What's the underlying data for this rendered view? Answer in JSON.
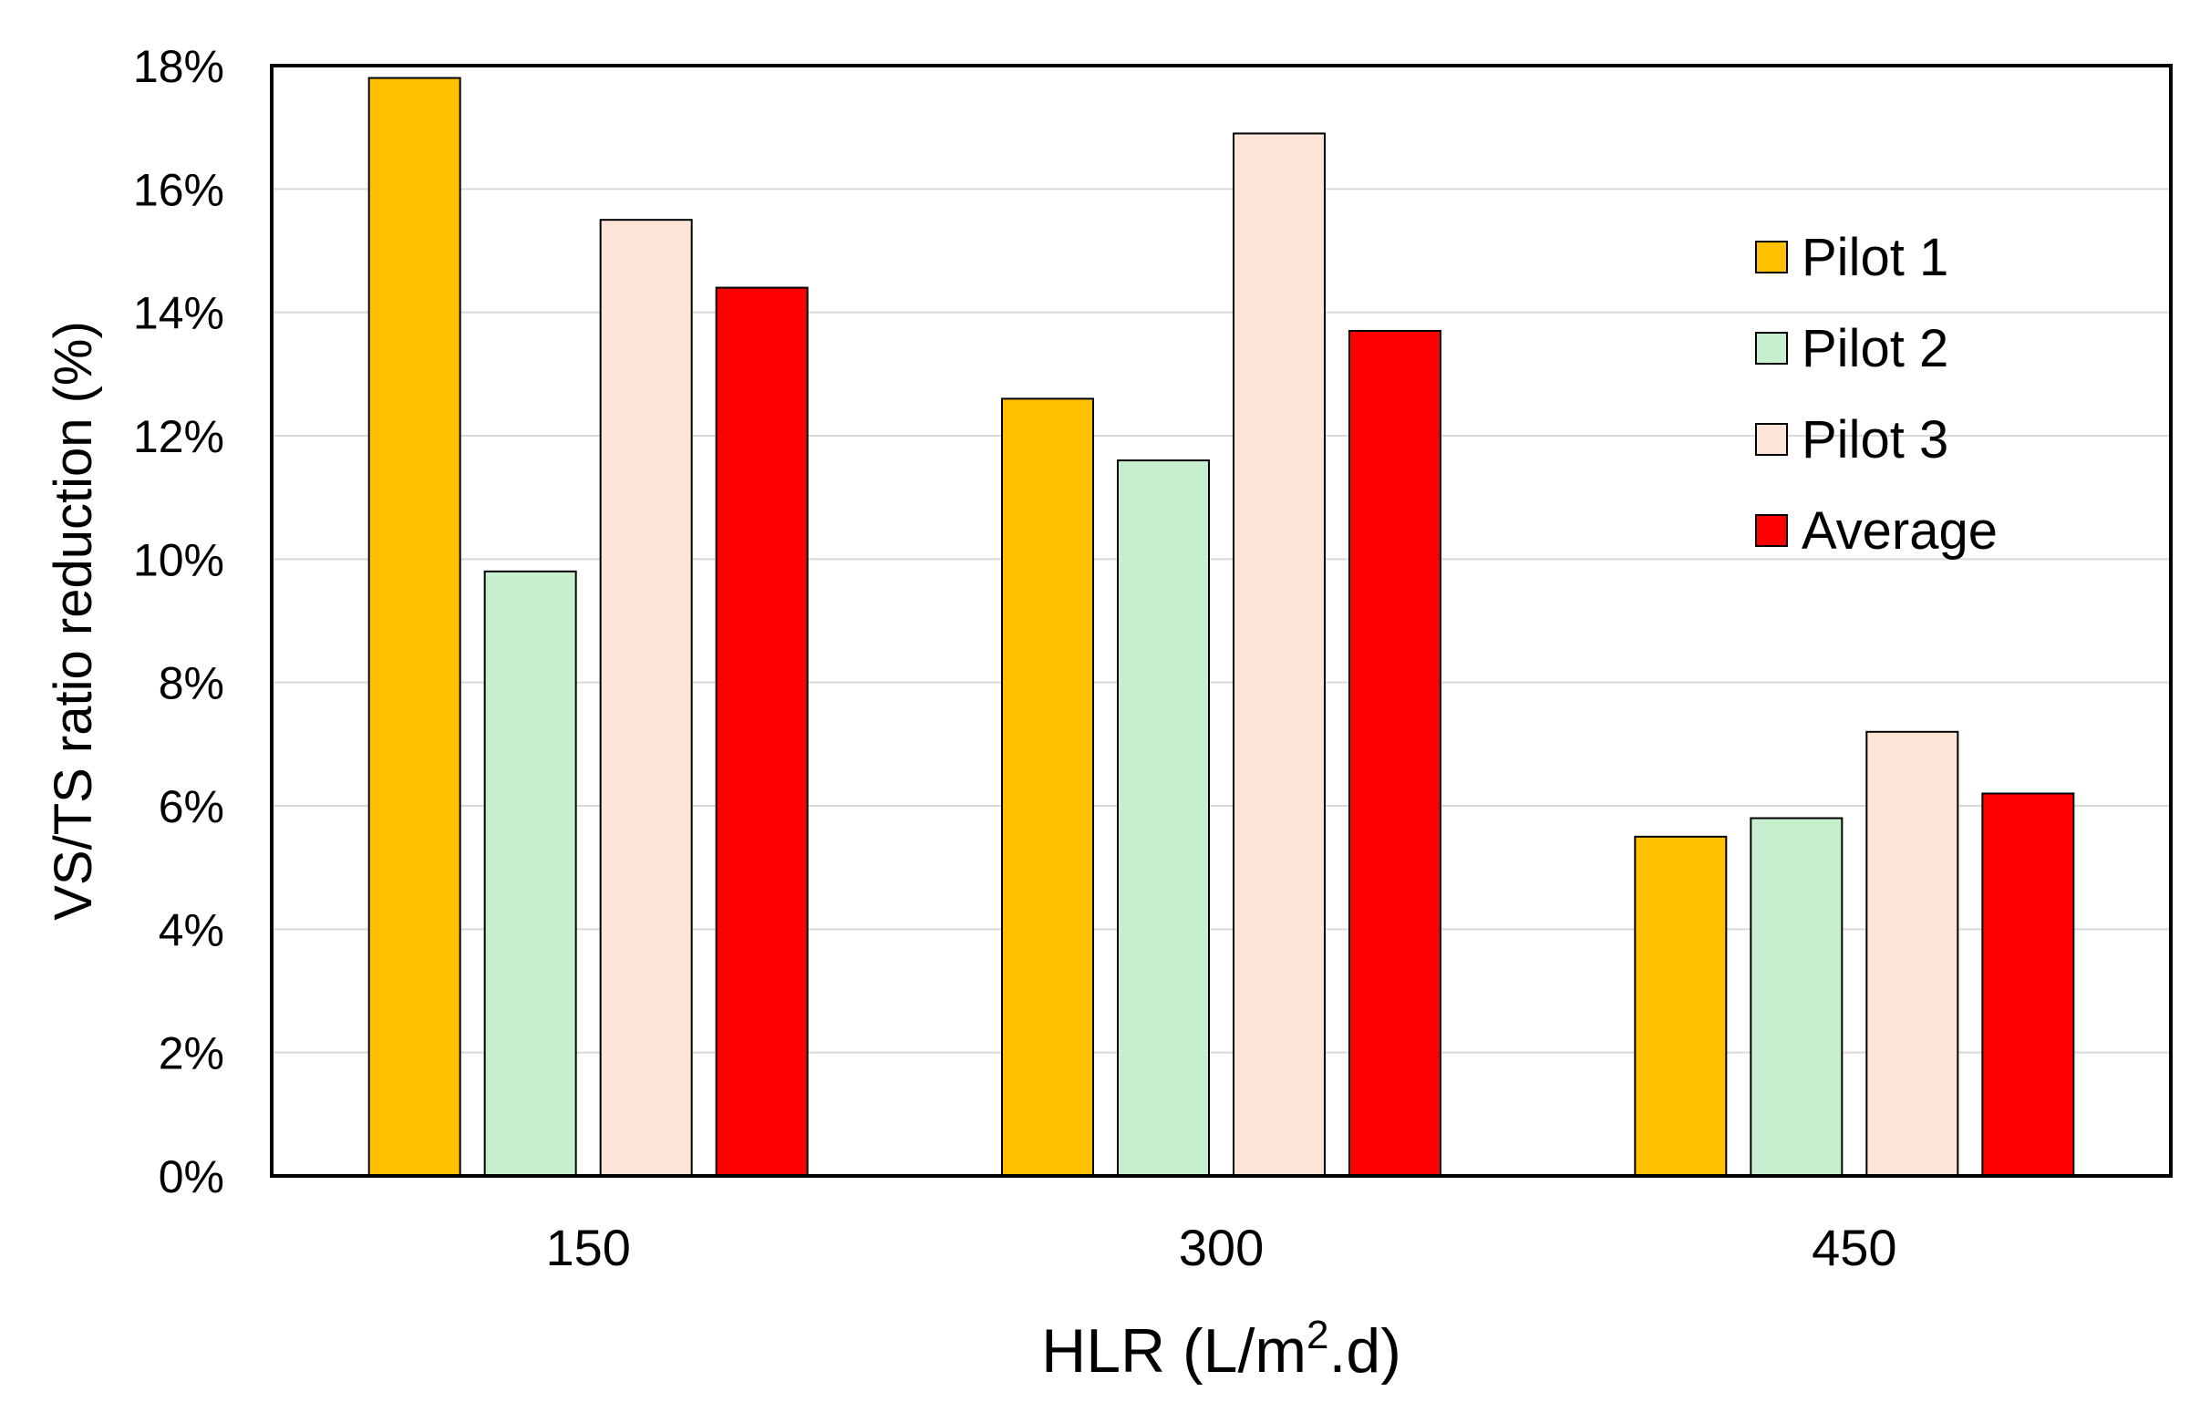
{
  "chart_data": {
    "type": "bar",
    "categories": [
      "150",
      "300",
      "450"
    ],
    "series": [
      {
        "name": "Pilot 1",
        "color": "#FFC000",
        "values": [
          17.8,
          12.6,
          5.5
        ]
      },
      {
        "name": "Pilot 2",
        "color": "#C6EFCE",
        "values": [
          9.8,
          11.6,
          5.8
        ]
      },
      {
        "name": "Pilot 3",
        "color": "#FCE4D6",
        "values": [
          15.5,
          16.9,
          7.2
        ]
      },
      {
        "name": "Average",
        "color": "#FF0000",
        "values": [
          14.4,
          13.7,
          6.2
        ]
      }
    ],
    "ylim": [
      0,
      18
    ],
    "yticks": [
      0,
      2,
      4,
      6,
      8,
      10,
      12,
      14,
      16,
      18
    ],
    "ytick_labels": [
      "0%",
      "2%",
      "4%",
      "6%",
      "8%",
      "10%",
      "12%",
      "14%",
      "16%",
      "18%"
    ],
    "ylabel": "VS/TS ratio reduction (%)",
    "xlabel": {
      "prefix": "HLR (L/m",
      "superscript": "2",
      "suffix": ".d)"
    },
    "grid": true,
    "legend_position": "top-right"
  }
}
